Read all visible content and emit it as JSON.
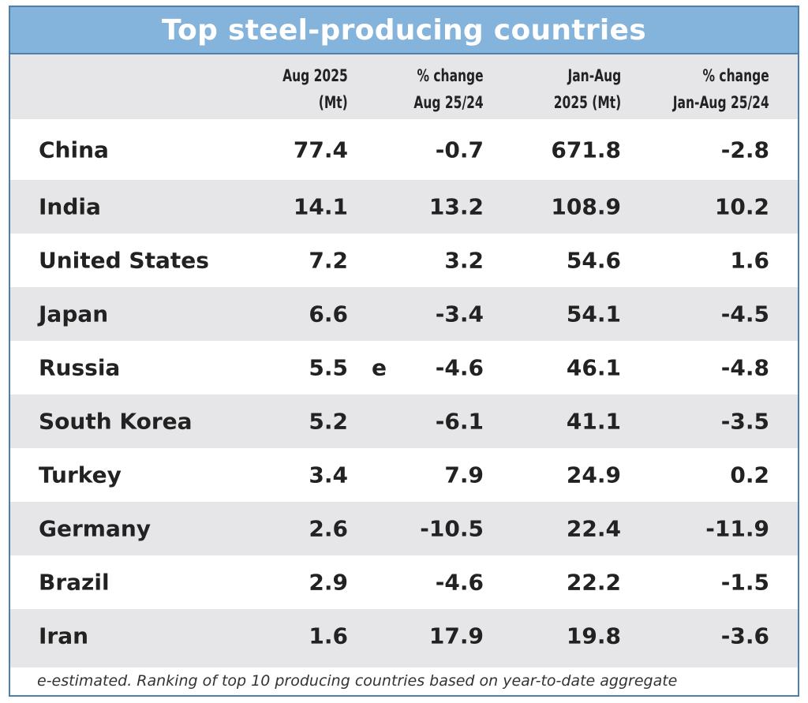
{
  "title": "Top steel-producing countries",
  "columns": [
    {
      "line1": "Aug 2025",
      "line2": "(Mt)"
    },
    {
      "line1": "% change",
      "line2": "Aug 25/24"
    },
    {
      "line1": "Jan-Aug",
      "line2": "2025 (Mt)"
    },
    {
      "line1": "% change",
      "line2": "Jan-Aug 25/24"
    }
  ],
  "rows": [
    {
      "country": "China",
      "aug": "77.4",
      "aug_chg": "-0.7",
      "ytd": "671.8",
      "ytd_chg": "-2.8",
      "flag": ""
    },
    {
      "country": "India",
      "aug": "14.1",
      "aug_chg": "13.2",
      "ytd": "108.9",
      "ytd_chg": "10.2",
      "flag": ""
    },
    {
      "country": "United States",
      "aug": "7.2",
      "aug_chg": "3.2",
      "ytd": "54.6",
      "ytd_chg": "1.6",
      "flag": ""
    },
    {
      "country": "Japan",
      "aug": "6.6",
      "aug_chg": "-3.4",
      "ytd": "54.1",
      "ytd_chg": "-4.5",
      "flag": ""
    },
    {
      "country": "Russia",
      "aug": "5.5",
      "aug_chg": "-4.6",
      "ytd": "46.1",
      "ytd_chg": "-4.8",
      "flag": "e"
    },
    {
      "country": "South Korea",
      "aug": "5.2",
      "aug_chg": "-6.1",
      "ytd": "41.1",
      "ytd_chg": "-3.5",
      "flag": ""
    },
    {
      "country": "Turkey",
      "aug": "3.4",
      "aug_chg": "7.9",
      "ytd": "24.9",
      "ytd_chg": "0.2",
      "flag": ""
    },
    {
      "country": "Germany",
      "aug": "2.6",
      "aug_chg": "-10.5",
      "ytd": "22.4",
      "ytd_chg": "-11.9",
      "flag": ""
    },
    {
      "country": "Brazil",
      "aug": "2.9",
      "aug_chg": "-4.6",
      "ytd": "22.2",
      "ytd_chg": "-1.5",
      "flag": ""
    },
    {
      "country": "Iran",
      "aug": "1.6",
      "aug_chg": "17.9",
      "ytd": "19.8",
      "ytd_chg": "-3.6",
      "flag": ""
    }
  ],
  "footnote": "e-estimated. Ranking of top 10 producing countries based on year-to-date aggregate",
  "chart_data": {
    "type": "table",
    "title": "Top steel-producing countries",
    "headers": [
      "",
      "Aug 2025 (Mt)",
      "% change Aug 25/24",
      "Jan-Aug 2025 (Mt)",
      "% change Jan-Aug 25/24"
    ],
    "rows": [
      [
        "China",
        77.4,
        -0.7,
        671.8,
        -2.8
      ],
      [
        "India",
        14.1,
        13.2,
        108.9,
        10.2
      ],
      [
        "United States",
        7.2,
        3.2,
        54.6,
        1.6
      ],
      [
        "Japan",
        6.6,
        -3.4,
        54.1,
        -4.5
      ],
      [
        "Russia",
        5.5,
        -4.6,
        46.1,
        -4.8
      ],
      [
        "South Korea",
        5.2,
        -6.1,
        41.1,
        -3.5
      ],
      [
        "Turkey",
        3.4,
        7.9,
        24.9,
        0.2
      ],
      [
        "Germany",
        2.6,
        -10.5,
        22.4,
        -11.9
      ],
      [
        "Brazil",
        2.9,
        -4.6,
        22.2,
        -1.5
      ],
      [
        "Iran",
        1.6,
        17.9,
        19.8,
        -3.6
      ]
    ],
    "colors": {
      "title_bar": "#84b4db",
      "border": "#4f7fab",
      "stripe": "#e6e6e8"
    }
  }
}
